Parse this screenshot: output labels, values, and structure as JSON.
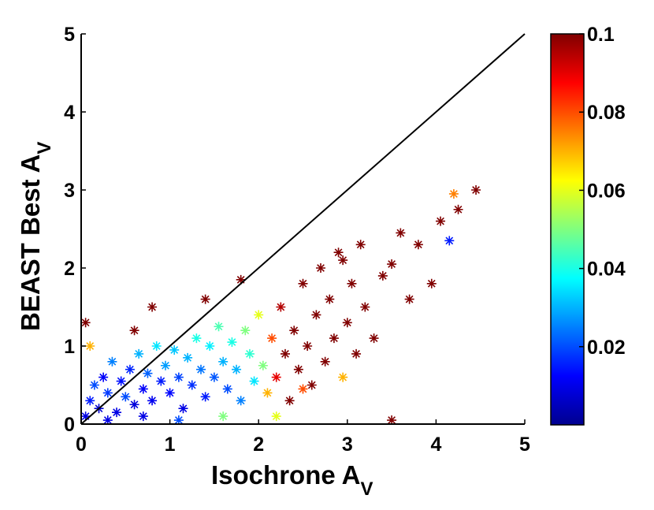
{
  "chart_data": {
    "type": "scatter",
    "title": "",
    "xlabel": {
      "main": "Isochrone A",
      "sub": "V"
    },
    "ylabel": {
      "main": "BEAST Best A",
      "sub": "V"
    },
    "xlim": [
      0,
      5
    ],
    "ylim": [
      0,
      5
    ],
    "xticks": [
      "0",
      "1",
      "2",
      "3",
      "4",
      "5"
    ],
    "yticks": [
      "0",
      "1",
      "2",
      "3",
      "4",
      "5"
    ],
    "grid": false,
    "marker": "asterisk",
    "reference_line": {
      "x": [
        0,
        5
      ],
      "y": [
        0,
        5
      ],
      "color": "#000000"
    },
    "colorbar": {
      "colormap": "jet",
      "range": [
        0,
        0.1
      ],
      "ticks": [
        "0.02",
        "0.04",
        "0.06",
        "0.08",
        "0.1"
      ],
      "tick_values": [
        0.02,
        0.04,
        0.06,
        0.08,
        0.1
      ]
    },
    "points": [
      [
        0.05,
        0.1,
        0.01
      ],
      [
        0.1,
        0.3,
        0.015
      ],
      [
        0.15,
        0.5,
        0.02
      ],
      [
        0.2,
        0.2,
        0.008
      ],
      [
        0.25,
        0.6,
        0.012
      ],
      [
        0.3,
        0.4,
        0.018
      ],
      [
        0.35,
        0.8,
        0.025
      ],
      [
        0.4,
        0.15,
        0.01
      ],
      [
        0.45,
        0.55,
        0.014
      ],
      [
        0.5,
        0.35,
        0.02
      ],
      [
        0.55,
        0.7,
        0.016
      ],
      [
        0.6,
        0.25,
        0.009
      ],
      [
        0.65,
        0.9,
        0.03
      ],
      [
        0.7,
        0.45,
        0.012
      ],
      [
        0.75,
        0.65,
        0.022
      ],
      [
        0.8,
        0.3,
        0.011
      ],
      [
        0.85,
        1.0,
        0.035
      ],
      [
        0.9,
        0.55,
        0.015
      ],
      [
        0.95,
        0.75,
        0.028
      ],
      [
        1.0,
        0.4,
        0.013
      ],
      [
        1.05,
        0.95,
        0.032
      ],
      [
        1.1,
        0.6,
        0.019
      ],
      [
        1.15,
        0.2,
        0.01
      ],
      [
        1.2,
        0.85,
        0.03
      ],
      [
        1.25,
        0.5,
        0.017
      ],
      [
        1.3,
        1.1,
        0.04
      ],
      [
        1.35,
        0.7,
        0.024
      ],
      [
        1.4,
        0.35,
        0.015
      ],
      [
        1.45,
        1.0,
        0.036
      ],
      [
        1.5,
        0.6,
        0.021
      ],
      [
        1.55,
        1.25,
        0.045
      ],
      [
        1.6,
        0.8,
        0.03
      ],
      [
        1.65,
        0.45,
        0.02
      ],
      [
        1.7,
        1.05,
        0.04
      ],
      [
        1.75,
        0.7,
        0.03
      ],
      [
        1.8,
        0.3,
        0.025
      ],
      [
        1.85,
        1.2,
        0.05
      ],
      [
        1.9,
        0.9,
        0.042
      ],
      [
        1.95,
        0.55,
        0.035
      ],
      [
        2.0,
        1.4,
        0.06
      ],
      [
        2.05,
        0.75,
        0.05
      ],
      [
        2.1,
        0.4,
        0.07
      ],
      [
        2.15,
        1.1,
        0.08
      ],
      [
        2.2,
        0.6,
        0.09
      ],
      [
        2.25,
        1.5,
        0.095
      ],
      [
        2.3,
        0.9,
        0.1
      ],
      [
        2.35,
        0.3,
        0.1
      ],
      [
        2.4,
        1.2,
        0.1
      ],
      [
        2.45,
        0.7,
        0.1
      ],
      [
        2.5,
        1.8,
        0.1
      ],
      [
        2.55,
        1.0,
        0.1
      ],
      [
        2.6,
        0.5,
        0.1
      ],
      [
        2.65,
        1.4,
        0.1
      ],
      [
        2.7,
        2.0,
        0.1
      ],
      [
        2.75,
        0.8,
        0.1
      ],
      [
        2.8,
        1.6,
        0.1
      ],
      [
        2.85,
        1.1,
        0.1
      ],
      [
        2.9,
        2.2,
        0.1
      ],
      [
        2.95,
        0.6,
        0.07
      ],
      [
        3.0,
        1.3,
        0.1
      ],
      [
        3.05,
        1.8,
        0.1
      ],
      [
        3.1,
        0.9,
        0.1
      ],
      [
        3.15,
        2.3,
        0.1
      ],
      [
        3.2,
        1.5,
        0.1
      ],
      [
        3.3,
        1.1,
        0.1
      ],
      [
        3.4,
        1.9,
        0.1
      ],
      [
        3.5,
        0.05,
        0.1
      ],
      [
        3.6,
        2.45,
        0.1
      ],
      [
        3.7,
        1.6,
        0.1
      ],
      [
        3.8,
        2.3,
        0.1
      ],
      [
        3.95,
        1.8,
        0.1
      ],
      [
        4.05,
        2.6,
        0.1
      ],
      [
        4.15,
        2.35,
        0.015
      ],
      [
        4.2,
        2.95,
        0.075
      ],
      [
        4.25,
        2.75,
        0.1
      ],
      [
        4.45,
        3.0,
        0.1
      ],
      [
        2.5,
        0.45,
        0.08
      ],
      [
        2.95,
        2.1,
        0.1
      ],
      [
        3.5,
        2.05,
        0.1
      ],
      [
        0.05,
        1.3,
        0.1
      ],
      [
        0.1,
        1.0,
        0.07
      ],
      [
        0.6,
        1.2,
        0.1
      ],
      [
        0.8,
        1.5,
        0.1
      ],
      [
        1.4,
        1.6,
        0.1
      ],
      [
        1.8,
        1.85,
        0.1
      ],
      [
        2.2,
        0.1,
        0.06
      ],
      [
        1.6,
        0.1,
        0.05
      ],
      [
        0.3,
        0.05,
        0.01
      ],
      [
        0.7,
        0.1,
        0.01
      ],
      [
        1.1,
        0.05,
        0.02
      ]
    ]
  }
}
